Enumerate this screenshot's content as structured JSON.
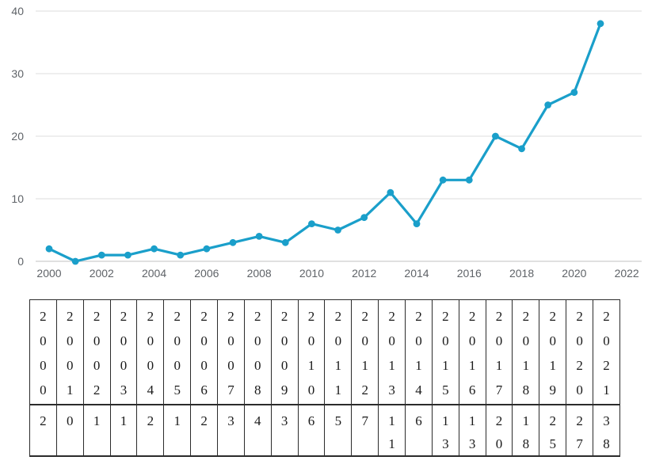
{
  "chart_data": {
    "type": "line",
    "title": "",
    "xlabel": "",
    "ylabel": "",
    "x": [
      2000,
      2001,
      2002,
      2003,
      2004,
      2005,
      2006,
      2007,
      2008,
      2009,
      2010,
      2011,
      2012,
      2013,
      2014,
      2015,
      2016,
      2017,
      2018,
      2019,
      2020,
      2021
    ],
    "values": [
      2,
      0,
      1,
      1,
      2,
      1,
      2,
      3,
      4,
      3,
      6,
      5,
      7,
      11,
      6,
      13,
      13,
      20,
      18,
      25,
      27,
      38
    ],
    "ylim": [
      0,
      40
    ],
    "yticks": [
      0,
      10,
      20,
      30,
      40
    ],
    "xticks": [
      2000,
      2002,
      2004,
      2006,
      2008,
      2010,
      2012,
      2014,
      2016,
      2018,
      2020,
      2022
    ],
    "grid": true,
    "legend_position": "none",
    "marker": "circle"
  },
  "table": {
    "header_years": [
      "2000",
      "2001",
      "2002",
      "2003",
      "2004",
      "2005",
      "2006",
      "2007",
      "2008",
      "2009",
      "2010",
      "2011",
      "2012",
      "2013",
      "2014",
      "2015",
      "2016",
      "2017",
      "2018",
      "2019",
      "2020",
      "2021"
    ],
    "values": [
      "2",
      "0",
      "1",
      "1",
      "2",
      "1",
      "2",
      "3",
      "4",
      "3",
      "6",
      "5",
      "7",
      "11",
      "6",
      "13",
      "13",
      "20",
      "18",
      "25",
      "27",
      "38"
    ]
  },
  "colors": {
    "line": "#1a9fca",
    "gridline": "#e8e8e8",
    "axis_line": "#d6d6d6",
    "tick_label": "#5f6368",
    "table_border": "#2b2b2b",
    "table_text": "#1a1a1a"
  }
}
